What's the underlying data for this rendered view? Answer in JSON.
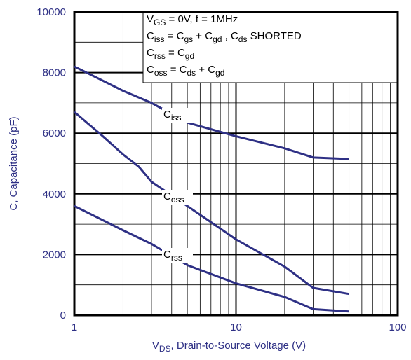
{
  "chart_data": {
    "type": "line",
    "x_label": [
      "V",
      "DS",
      ", Drain-to-Source Voltage (V)"
    ],
    "y_label": "C, Capacitance (pF)",
    "xlog": true,
    "grid": true,
    "xlim": [
      1,
      100
    ],
    "ylim": [
      0,
      10000
    ],
    "xticks": [
      1,
      10,
      100
    ],
    "yticks": [
      0,
      2000,
      4000,
      6000,
      8000,
      10000
    ],
    "legend_lines": [
      [
        "V",
        "GS",
        " = 0V,       f = 1MHz"
      ],
      [
        "C",
        "iss",
        " = C",
        "gs",
        " + C",
        "gd",
        " ,  C",
        "ds",
        "  SHORTED"
      ],
      [
        "C",
        "rss",
        " = C",
        "gd"
      ],
      [
        "C",
        "oss",
        " = C",
        "ds",
        " + C",
        "gd"
      ]
    ],
    "series": [
      {
        "label": [
          "C",
          "iss"
        ],
        "color": "#2e3085",
        "x": [
          1,
          2,
          3,
          5,
          10,
          20,
          30,
          50
        ],
        "values": [
          8200,
          7400,
          7000,
          6350,
          5900,
          5500,
          5200,
          5150
        ]
      },
      {
        "label": [
          "C",
          "oss"
        ],
        "color": "#2e3085",
        "x": [
          1,
          1.5,
          2,
          2.5,
          3,
          5,
          10,
          20,
          30,
          50
        ],
        "values": [
          6700,
          5900,
          5300,
          4900,
          4400,
          3600,
          2500,
          1600,
          900,
          700
        ]
      },
      {
        "label": [
          "C",
          "rss"
        ],
        "color": "#2e3085",
        "x": [
          1,
          2,
          3,
          5,
          10,
          20,
          30,
          50
        ],
        "values": [
          3600,
          2800,
          2350,
          1650,
          1050,
          600,
          200,
          120
        ]
      }
    ]
  }
}
